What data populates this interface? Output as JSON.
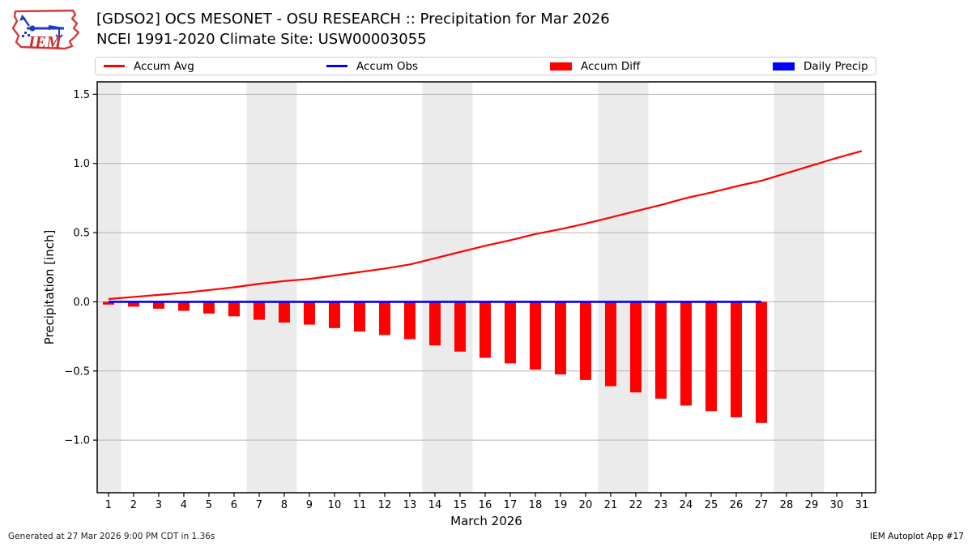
{
  "header": {
    "title_line1": "[GDSO2] OCS MESONET - OSU RESEARCH :: Precipitation for Mar 2026",
    "title_line2": "NCEI 1991-2020 Climate Site: USW00003055",
    "logo_text": "IEM"
  },
  "legend": {
    "items": [
      {
        "label": "Accum Avg",
        "swatch": "line",
        "color": "#ff0000"
      },
      {
        "label": "Accum Obs",
        "swatch": "line",
        "color": "#0000ff"
      },
      {
        "label": "Accum Diff",
        "swatch": "rect",
        "color": "#ff0000"
      },
      {
        "label": "Daily Precip",
        "swatch": "rect",
        "color": "#0000ff"
      }
    ]
  },
  "footer": {
    "left": "Generated at 27 Mar 2026 9:00 PM CDT in 1.36s",
    "right": "IEM Autoplot App #17"
  },
  "chart_data": {
    "type": "line",
    "title": "[GDSO2] OCS MESONET - OSU RESEARCH :: Precipitation for Mar 2026",
    "subtitle": "NCEI 1991-2020 Climate Site: USW00003055",
    "xlabel": "March 2026",
    "ylabel": "Precipitation [inch]",
    "xlim": [
      0.55,
      31.55
    ],
    "ylim": [
      -1.38,
      1.59
    ],
    "xticks": [
      1,
      2,
      3,
      4,
      5,
      6,
      7,
      8,
      9,
      10,
      11,
      12,
      13,
      14,
      15,
      16,
      17,
      18,
      19,
      20,
      21,
      22,
      23,
      24,
      25,
      26,
      27,
      28,
      29,
      30,
      31
    ],
    "yticks": [
      -1.0,
      -0.5,
      0.0,
      0.5,
      1.0,
      1.5
    ],
    "ytick_labels": [
      "−1.0",
      "−0.5",
      "0.0",
      "0.5",
      "1.0",
      "1.5"
    ],
    "grid": true,
    "grid_color": "#b3b3b3",
    "weekend_band_color": "#ebebeb",
    "weekend_bands": [
      [
        0.55,
        1.5
      ],
      [
        6.5,
        8.5
      ],
      [
        13.5,
        15.5
      ],
      [
        20.5,
        22.5
      ],
      [
        27.5,
        29.5
      ]
    ],
    "legend_position": "top",
    "series": [
      {
        "name": "Accum Avg",
        "type": "line",
        "color": "#ff0000",
        "x": [
          1,
          2,
          3,
          4,
          5,
          6,
          7,
          8,
          9,
          10,
          11,
          12,
          13,
          14,
          15,
          16,
          17,
          18,
          19,
          20,
          21,
          22,
          23,
          24,
          25,
          26,
          27,
          28,
          29,
          30,
          31
        ],
        "values": [
          0.02,
          0.035,
          0.05,
          0.065,
          0.085,
          0.105,
          0.13,
          0.15,
          0.165,
          0.19,
          0.215,
          0.24,
          0.27,
          0.315,
          0.36,
          0.405,
          0.445,
          0.49,
          0.525,
          0.565,
          0.61,
          0.655,
          0.7,
          0.75,
          0.79,
          0.835,
          0.875,
          0.93,
          0.985,
          1.04,
          1.09
        ]
      },
      {
        "name": "Accum Obs",
        "type": "line",
        "color": "#0000ff",
        "x": [
          1,
          2,
          3,
          4,
          5,
          6,
          7,
          8,
          9,
          10,
          11,
          12,
          13,
          14,
          15,
          16,
          17,
          18,
          19,
          20,
          21,
          22,
          23,
          24,
          25,
          26,
          27
        ],
        "values": [
          0,
          0,
          0,
          0,
          0,
          0,
          0,
          0,
          0,
          0,
          0,
          0,
          0,
          0,
          0,
          0,
          0,
          0,
          0,
          0,
          0,
          0,
          0,
          0,
          0,
          0,
          0
        ]
      },
      {
        "name": "Accum Diff",
        "type": "bar",
        "color": "#ff0000",
        "x": [
          1,
          2,
          3,
          4,
          5,
          6,
          7,
          8,
          9,
          10,
          11,
          12,
          13,
          14,
          15,
          16,
          17,
          18,
          19,
          20,
          21,
          22,
          23,
          24,
          25,
          26,
          27
        ],
        "values": [
          -0.02,
          -0.035,
          -0.05,
          -0.065,
          -0.085,
          -0.105,
          -0.13,
          -0.15,
          -0.165,
          -0.19,
          -0.215,
          -0.24,
          -0.27,
          -0.315,
          -0.36,
          -0.405,
          -0.445,
          -0.49,
          -0.525,
          -0.565,
          -0.61,
          -0.655,
          -0.7,
          -0.75,
          -0.79,
          -0.835,
          -0.875
        ]
      },
      {
        "name": "Daily Precip",
        "type": "bar",
        "color": "#0000ff",
        "x": [],
        "values": []
      }
    ]
  }
}
